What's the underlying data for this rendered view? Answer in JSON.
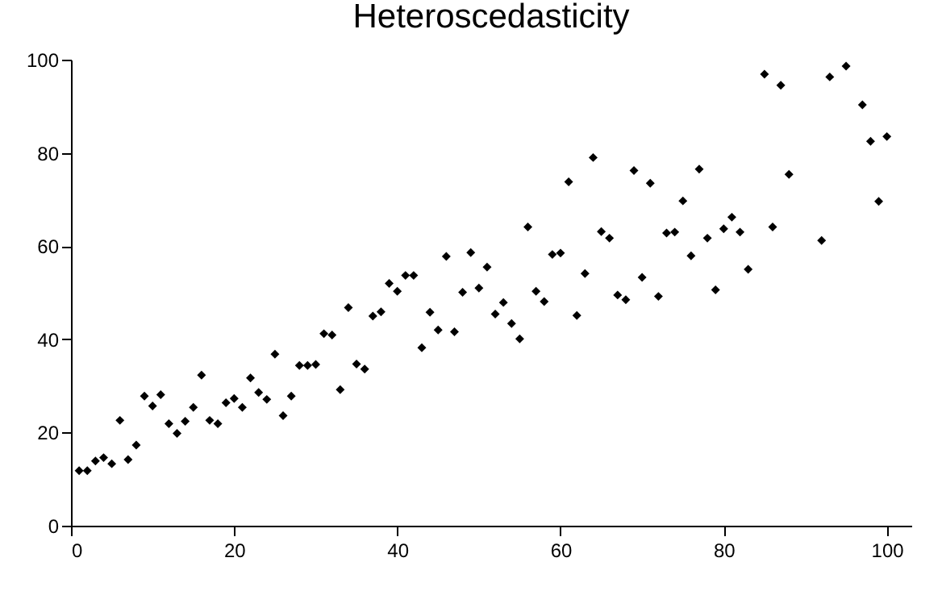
{
  "chart_data": {
    "type": "scatter",
    "title": "Heteroscedasticity",
    "marker": "diamond",
    "grid": false,
    "xlim": [
      0,
      103
    ],
    "ylim": [
      0,
      100
    ],
    "xticks": [
      0,
      20,
      40,
      60,
      80,
      100
    ],
    "yticks": [
      0,
      20,
      40,
      60,
      80,
      100
    ],
    "x": [
      1,
      2,
      3,
      4,
      5,
      6,
      7,
      8,
      9,
      10,
      11,
      12,
      13,
      14,
      15,
      16,
      17,
      18,
      19,
      20,
      21,
      22,
      23,
      24,
      25,
      26,
      27,
      28,
      29,
      30,
      31,
      32,
      33,
      34,
      35,
      36,
      37,
      38,
      39,
      40,
      41,
      42,
      43,
      44,
      45,
      46,
      47,
      48,
      49,
      50,
      51,
      52,
      53,
      54,
      55,
      56,
      57,
      58,
      59,
      60,
      61,
      62,
      63,
      64,
      65,
      66,
      67,
      68,
      69,
      70,
      71,
      72,
      73,
      74,
      75,
      76,
      77,
      78,
      79,
      80,
      81,
      82,
      83,
      85,
      86,
      87,
      88,
      92,
      93,
      95,
      97,
      98,
      99,
      100
    ],
    "series": [
      {
        "color": "#000000",
        "values": [
          11.8,
          11.8,
          13.9,
          14.6,
          13.3,
          22.6,
          14.2,
          17.3,
          27.8,
          25.7,
          28.1,
          21.9,
          19.8,
          22.4,
          25.4,
          32.3,
          22.6,
          21.9,
          26.4,
          27.3,
          25.4,
          31.7,
          28.6,
          27.1,
          36.8,
          23.6,
          27.8,
          34.4,
          34.4,
          34.6,
          41.2,
          40.9,
          29.2,
          46.8,
          34.7,
          33.6,
          45,
          45.9,
          52,
          50.3,
          53.7,
          53.7,
          38.2,
          45.8,
          42,
          57.8,
          41.6,
          50.1,
          58.6,
          51,
          55.5,
          45.4,
          47.9,
          43.4,
          40.1,
          64.1,
          50.3,
          48.1,
          58.2,
          58.5,
          73.8,
          45.1,
          54.1,
          79,
          63.1,
          61.7,
          49.5,
          48.5,
          76.2,
          53.3,
          73.5,
          49.2,
          62.8,
          63,
          69.7,
          57.9,
          76.5,
          61.7,
          50.6,
          63.7,
          66.2,
          63,
          55,
          96.9,
          64.1,
          94.5,
          75.4,
          61.2,
          96.3,
          98.6,
          90.3,
          82.5,
          69.6,
          83.5
        ]
      }
    ]
  }
}
